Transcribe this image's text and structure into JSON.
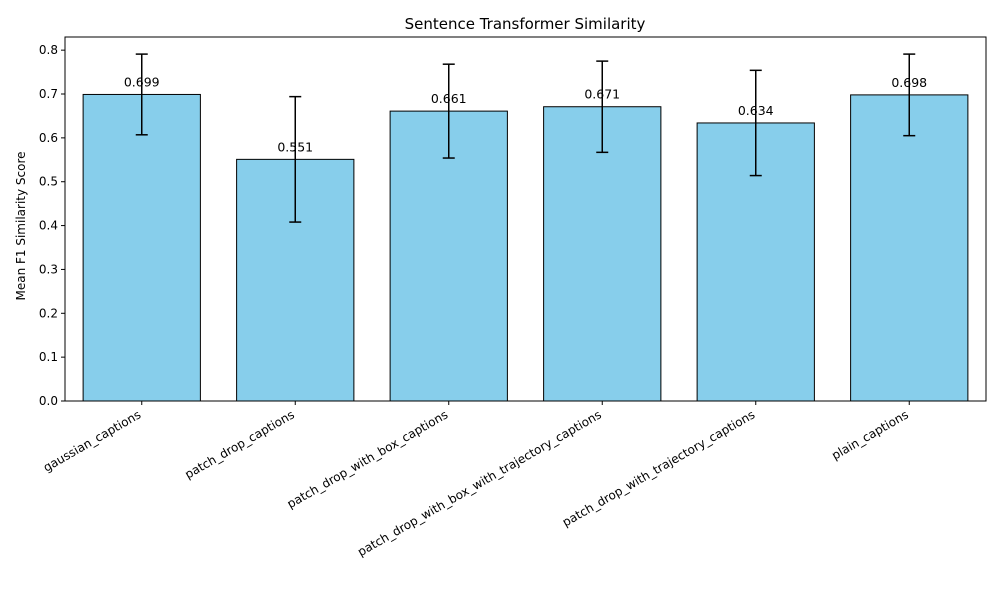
{
  "chart_data": {
    "type": "bar",
    "title": "Sentence Transformer Similarity",
    "xlabel": "",
    "ylabel": "Mean F1 Similarity Score",
    "categories": [
      "gaussian_captions",
      "patch_drop_captions",
      "patch_drop_with_box_captions",
      "patch_drop_with_box_with_trajectory_captions",
      "patch_drop_with_trajectory_captions",
      "plain_captions"
    ],
    "values": [
      0.699,
      0.551,
      0.661,
      0.671,
      0.634,
      0.698
    ],
    "value_labels": [
      "0.699",
      "0.551",
      "0.661",
      "0.671",
      "0.634",
      "0.698"
    ],
    "error": [
      0.092,
      0.143,
      0.107,
      0.104,
      0.12,
      0.093
    ],
    "ylim": [
      0,
      0.83
    ],
    "yticks": [
      0.0,
      0.1,
      0.2,
      0.3,
      0.4,
      0.5,
      0.6,
      0.7,
      0.8
    ],
    "ytick_labels": [
      "0.0",
      "0.1",
      "0.2",
      "0.3",
      "0.4",
      "0.5",
      "0.6",
      "0.7",
      "0.8"
    ],
    "grid": false,
    "colors": {
      "bar": "#87ceeb",
      "edge": "#000000",
      "error": "#000000"
    }
  }
}
